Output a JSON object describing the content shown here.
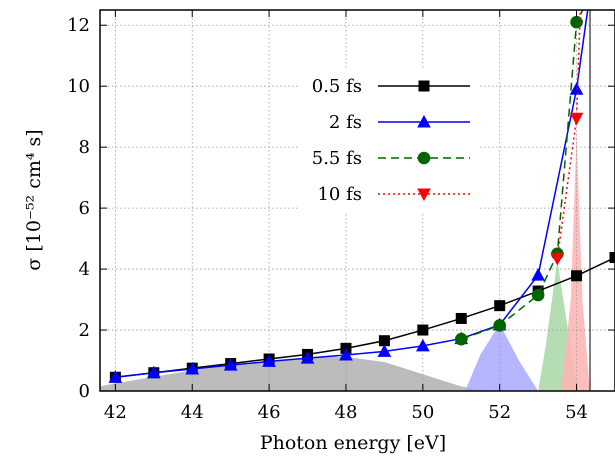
{
  "chart_data": {
    "type": "line",
    "xlabel": "Photon energy [eV]",
    "ylabel": "σ [10⁻⁵² cm⁴ s]",
    "xlim": [
      41.6,
      55
    ],
    "ylim": [
      0,
      12.5
    ],
    "x_ticks": [
      42,
      44,
      46,
      48,
      50,
      52,
      54
    ],
    "y_ticks": [
      0,
      2,
      4,
      6,
      8,
      10,
      12
    ],
    "x_tick_labels": [
      "42",
      "44",
      "46",
      "48",
      "50",
      "52",
      "54"
    ],
    "y_tick_labels": [
      "0",
      "2",
      "4",
      "6",
      "8",
      "10",
      "12"
    ],
    "grid": true,
    "legend_position": "top-center",
    "vertical_line_x": 54.35,
    "series": [
      {
        "name": "0.5 fs",
        "color": "#000000",
        "dash": "solid",
        "marker": "square",
        "x": [
          42,
          43,
          44,
          45,
          46,
          47,
          48,
          49,
          50,
          51,
          52,
          53,
          54,
          55
        ],
        "y": [
          0.45,
          0.6,
          0.75,
          0.9,
          1.05,
          1.2,
          1.4,
          1.65,
          2.0,
          2.38,
          2.8,
          3.28,
          3.78,
          4.38
        ]
      },
      {
        "name": "2 fs",
        "color": "#0000ff",
        "dash": "solid",
        "marker": "triangle-up",
        "x": [
          42,
          43,
          44,
          45,
          46,
          47,
          48,
          49,
          50,
          51,
          52,
          53,
          54,
          54.3
        ],
        "y": [
          0.45,
          0.6,
          0.72,
          0.85,
          0.97,
          1.08,
          1.18,
          1.3,
          1.48,
          1.72,
          2.17,
          3.8,
          9.9,
          12.6
        ]
      },
      {
        "name": "5.5 fs",
        "color": "#006400",
        "dash": "dashed",
        "marker": "circle",
        "x": [
          51,
          52,
          53,
          53.5,
          54,
          54.2
        ],
        "y": [
          1.7,
          2.15,
          3.15,
          4.5,
          12.1,
          12.6
        ]
      },
      {
        "name": "10 fs",
        "color": "#ff0000",
        "dash": "dotted",
        "marker": "triangle-down",
        "x": [
          53.5,
          54,
          54.1
        ],
        "y": [
          4.35,
          8.95,
          12.6
        ]
      }
    ],
    "shaded_spectra": [
      {
        "color": "#b0b0b0",
        "x": [
          41.6,
          42,
          44,
          46,
          47,
          48,
          49,
          50,
          51,
          51.6
        ],
        "y": [
          0.15,
          0.25,
          0.68,
          1.0,
          1.1,
          1.12,
          0.95,
          0.55,
          0.15,
          0
        ]
      },
      {
        "color": "#a9a9ff",
        "x": [
          51.1,
          51.5,
          52,
          52.5,
          53
        ],
        "y": [
          0,
          1.2,
          2.2,
          1.0,
          0
        ]
      },
      {
        "color": "#a7d7a7",
        "x": [
          53.0,
          53.2,
          53.5,
          53.8,
          54.05
        ],
        "y": [
          0,
          1.5,
          4.3,
          1.8,
          0
        ]
      },
      {
        "color": "#ffb3b3",
        "x": [
          53.6,
          53.85,
          54.0,
          54.15,
          54.35
        ],
        "y": [
          0,
          3.0,
          8.5,
          3.0,
          0
        ]
      }
    ]
  }
}
